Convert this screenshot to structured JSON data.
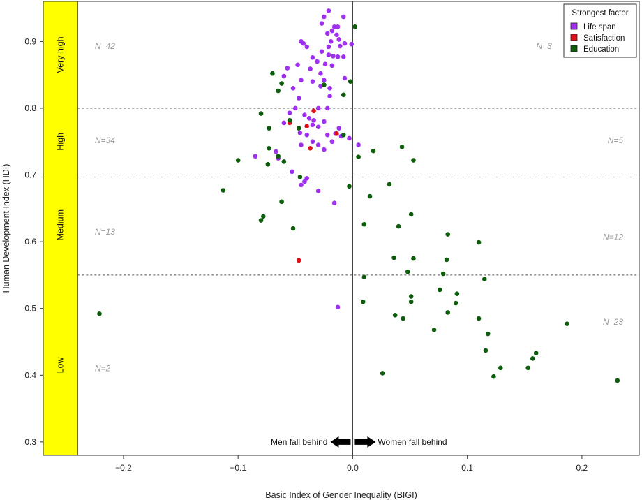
{
  "chart_data": {
    "type": "scatter",
    "xlabel": "Basic Index of Gender Inequality (BIGI)",
    "ylabel": "Human Development Index (HDI)",
    "xlim": [
      -0.27,
      0.25
    ],
    "ylim": [
      0.28,
      0.96
    ],
    "x_ticks": [
      -0.2,
      -0.1,
      0.0,
      0.1,
      0.2
    ],
    "x_tick_labels": [
      "−0.2",
      "−0.1",
      "0.0",
      "0.1",
      "0.2"
    ],
    "y_ticks": [
      0.3,
      0.4,
      0.5,
      0.6,
      0.7,
      0.8,
      0.9
    ],
    "y_tick_labels": [
      "0.3",
      "0.4",
      "0.5",
      "0.6",
      "0.7",
      "0.8",
      "0.9"
    ],
    "grid": false,
    "vertical_line_x": 0.0,
    "hdi_thresholds": [
      0.55,
      0.7,
      0.8
    ],
    "hdi_bands": [
      {
        "label": "Very high",
        "y_min": 0.8,
        "y_max": 0.96
      },
      {
        "label": "High",
        "y_min": 0.7,
        "y_max": 0.8
      },
      {
        "label": "Medium",
        "y_min": 0.55,
        "y_max": 0.7
      },
      {
        "label": "Low",
        "y_min": 0.28,
        "y_max": 0.55
      }
    ],
    "band_color": "#ffff00",
    "band_right_x": -0.24,
    "counts": [
      {
        "text": "N=42",
        "x": -0.225,
        "y": 0.893,
        "anchor": "start"
      },
      {
        "text": "N=34",
        "x": -0.225,
        "y": 0.752,
        "anchor": "start"
      },
      {
        "text": "N=13",
        "x": -0.225,
        "y": 0.615,
        "anchor": "start"
      },
      {
        "text": "N=2",
        "x": -0.225,
        "y": 0.41,
        "anchor": "start"
      },
      {
        "text": "N=3",
        "x": 0.167,
        "y": 0.893,
        "anchor": "middle"
      },
      {
        "text": "N=5",
        "x": 0.236,
        "y": 0.752,
        "anchor": "end"
      },
      {
        "text": "N=12",
        "x": 0.236,
        "y": 0.607,
        "anchor": "end"
      },
      {
        "text": "N=23",
        "x": 0.236,
        "y": 0.48,
        "anchor": "end"
      }
    ],
    "annotations": {
      "left_text": "Men fall behind",
      "right_text": "Women fall behind",
      "y": 0.3
    },
    "legend": {
      "title": "Strongest factor",
      "position": "top-right"
    },
    "series": [
      {
        "name": "Life span",
        "color": "#a030f0",
        "points": [
          [
            -0.021,
            0.946
          ],
          [
            -0.008,
            0.937
          ],
          [
            -0.025,
            0.937
          ],
          [
            -0.016,
            0.922
          ],
          [
            -0.013,
            0.922
          ],
          [
            -0.027,
            0.927
          ],
          [
            -0.018,
            0.916
          ],
          [
            -0.022,
            0.912
          ],
          [
            -0.014,
            0.91
          ],
          [
            -0.012,
            0.903
          ],
          [
            -0.019,
            0.9
          ],
          [
            -0.045,
            0.9
          ],
          [
            -0.043,
            0.897
          ],
          [
            -0.021,
            0.892
          ],
          [
            -0.011,
            0.893
          ],
          [
            -0.007,
            0.897
          ],
          [
            -0.001,
            0.896
          ],
          [
            -0.04,
            0.892
          ],
          [
            -0.027,
            0.885
          ],
          [
            -0.021,
            0.88
          ],
          [
            -0.035,
            0.876
          ],
          [
            -0.017,
            0.878
          ],
          [
            -0.013,
            0.877
          ],
          [
            -0.008,
            0.877
          ],
          [
            -0.031,
            0.87
          ],
          [
            -0.024,
            0.866
          ],
          [
            -0.018,
            0.864
          ],
          [
            -0.048,
            0.865
          ],
          [
            -0.037,
            0.859
          ],
          [
            -0.028,
            0.852
          ],
          [
            -0.057,
            0.86
          ],
          [
            -0.06,
            0.848
          ],
          [
            -0.045,
            0.842
          ],
          [
            -0.007,
            0.845
          ],
          [
            -0.025,
            0.842
          ],
          [
            -0.035,
            0.84
          ],
          [
            -0.028,
            0.833
          ],
          [
            -0.02,
            0.83
          ],
          [
            -0.052,
            0.83
          ],
          [
            -0.047,
            0.815
          ],
          [
            -0.02,
            0.818
          ],
          [
            -0.03,
            0.8
          ],
          [
            -0.022,
            0.8
          ],
          [
            -0.05,
            0.8
          ],
          [
            -0.055,
            0.793
          ],
          [
            -0.042,
            0.79
          ],
          [
            -0.038,
            0.785
          ],
          [
            -0.034,
            0.782
          ],
          [
            -0.025,
            0.78
          ],
          [
            -0.06,
            0.778
          ],
          [
            -0.035,
            0.775
          ],
          [
            -0.03,
            0.772
          ],
          [
            -0.012,
            0.77
          ],
          [
            -0.046,
            0.763
          ],
          [
            -0.015,
            0.762
          ],
          [
            -0.022,
            0.76
          ],
          [
            -0.04,
            0.76
          ],
          [
            -0.01,
            0.758
          ],
          [
            -0.003,
            0.755
          ],
          [
            -0.035,
            0.75
          ],
          [
            -0.018,
            0.75
          ],
          [
            -0.045,
            0.745
          ],
          [
            -0.03,
            0.745
          ],
          [
            0.005,
            0.745
          ],
          [
            -0.067,
            0.735
          ],
          [
            -0.025,
            0.738
          ],
          [
            -0.085,
            0.728
          ],
          [
            -0.065,
            0.725
          ],
          [
            -0.053,
            0.705
          ],
          [
            -0.04,
            0.695
          ],
          [
            -0.045,
            0.685
          ],
          [
            -0.042,
            0.69
          ],
          [
            -0.03,
            0.676
          ],
          [
            -0.016,
            0.658
          ],
          [
            -0.013,
            0.502
          ]
        ]
      },
      {
        "name": "Satisfaction",
        "color": "#e0101a",
        "points": [
          [
            -0.034,
            0.796
          ],
          [
            -0.055,
            0.778
          ],
          [
            -0.04,
            0.773
          ],
          [
            -0.014,
            0.762
          ],
          [
            -0.037,
            0.74
          ],
          [
            -0.047,
            0.572
          ]
        ]
      },
      {
        "name": "Education",
        "color": "#0c5c0c",
        "points": [
          [
            0.002,
            0.922
          ],
          [
            -0.07,
            0.852
          ],
          [
            -0.062,
            0.837
          ],
          [
            -0.065,
            0.826
          ],
          [
            -0.002,
            0.84
          ],
          [
            -0.008,
            0.82
          ],
          [
            -0.025,
            0.835
          ],
          [
            -0.08,
            0.792
          ],
          [
            -0.055,
            0.782
          ],
          [
            -0.073,
            0.77
          ],
          [
            -0.047,
            0.77
          ],
          [
            -0.008,
            0.76
          ],
          [
            -0.073,
            0.74
          ],
          [
            0.005,
            0.727
          ],
          [
            0.018,
            0.736
          ],
          [
            0.043,
            0.742
          ],
          [
            -0.065,
            0.728
          ],
          [
            -0.06,
            0.72
          ],
          [
            -0.1,
            0.722
          ],
          [
            -0.074,
            0.716
          ],
          [
            0.053,
            0.722
          ],
          [
            -0.046,
            0.697
          ],
          [
            -0.003,
            0.683
          ],
          [
            0.032,
            0.686
          ],
          [
            -0.113,
            0.677
          ],
          [
            0.015,
            0.668
          ],
          [
            -0.062,
            0.66
          ],
          [
            -0.078,
            0.638
          ],
          [
            -0.08,
            0.632
          ],
          [
            0.051,
            0.641
          ],
          [
            0.01,
            0.626
          ],
          [
            0.04,
            0.623
          ],
          [
            -0.052,
            0.62
          ],
          [
            0.083,
            0.611
          ],
          [
            0.11,
            0.599
          ],
          [
            0.036,
            0.576
          ],
          [
            0.053,
            0.575
          ],
          [
            0.082,
            0.573
          ],
          [
            0.079,
            0.552
          ],
          [
            0.048,
            0.555
          ],
          [
            0.01,
            0.547
          ],
          [
            0.115,
            0.544
          ],
          [
            0.076,
            0.528
          ],
          [
            0.091,
            0.522
          ],
          [
            0.051,
            0.518
          ],
          [
            0.009,
            0.51
          ],
          [
            0.051,
            0.51
          ],
          [
            0.09,
            0.508
          ],
          [
            0.083,
            0.494
          ],
          [
            0.037,
            0.49
          ],
          [
            0.044,
            0.485
          ],
          [
            0.11,
            0.485
          ],
          [
            0.187,
            0.477
          ],
          [
            0.071,
            0.468
          ],
          [
            0.118,
            0.462
          ],
          [
            -0.221,
            0.492
          ],
          [
            0.116,
            0.437
          ],
          [
            0.16,
            0.433
          ],
          [
            0.157,
            0.425
          ],
          [
            0.129,
            0.411
          ],
          [
            0.153,
            0.411
          ],
          [
            0.026,
            0.403
          ],
          [
            0.123,
            0.398
          ],
          [
            0.231,
            0.392
          ]
        ]
      }
    ]
  }
}
